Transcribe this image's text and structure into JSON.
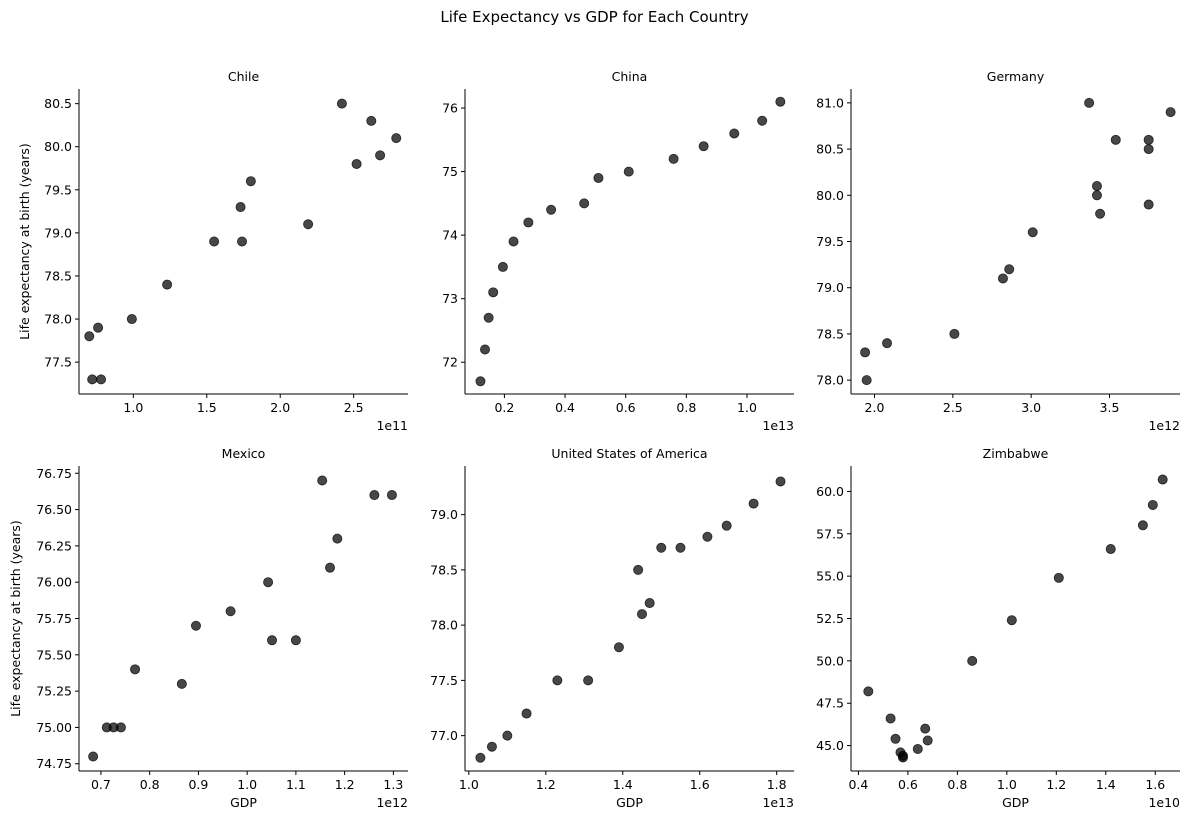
{
  "figure": {
    "title": "Life Expectancy vs GDP for Each Country"
  },
  "colors": {
    "marker": "#000000",
    "axis": "#000000",
    "background": "#ffffff"
  },
  "chart_data": [
    {
      "type": "scatter",
      "title": "Chile",
      "xlabel": "",
      "ylabel": "Life expectancy at birth (years)",
      "x_offset_label": "1e11",
      "xlim": [
        0.63,
        2.87
      ],
      "ylim": [
        77.13,
        80.67
      ],
      "xticks": [
        1.0,
        1.5,
        2.0,
        2.5
      ],
      "xtick_labels": [
        "1.0",
        "1.5",
        "2.0",
        "2.5"
      ],
      "yticks": [
        77.5,
        78.0,
        78.5,
        79.0,
        79.5,
        80.0,
        80.5
      ],
      "ytick_labels": [
        "77.5",
        "78.0",
        "78.5",
        "79.0",
        "79.5",
        "80.0",
        "80.5"
      ],
      "x": [
        0.7,
        0.76,
        0.72,
        0.78,
        0.99,
        1.23,
        1.55,
        1.73,
        1.74,
        1.8,
        2.19,
        2.42,
        2.52,
        2.62,
        2.68,
        2.79
      ],
      "y": [
        77.8,
        77.9,
        77.3,
        77.3,
        78.0,
        78.4,
        78.9,
        79.3,
        78.9,
        79.6,
        79.1,
        80.5,
        79.8,
        80.3,
        79.9,
        80.1
      ]
    },
    {
      "type": "scatter",
      "title": "China",
      "xlabel": "",
      "ylabel": "",
      "x_offset_label": "1e13",
      "xlim": [
        0.07,
        1.155
      ],
      "ylim": [
        71.5,
        76.3
      ],
      "xticks": [
        0.2,
        0.4,
        0.6,
        0.8,
        1.0
      ],
      "xtick_labels": [
        "0.2",
        "0.4",
        "0.6",
        "0.8",
        "1.0"
      ],
      "yticks": [
        72,
        73,
        74,
        75,
        76
      ],
      "ytick_labels": [
        "72",
        "73",
        "74",
        "75",
        "76"
      ],
      "x": [
        0.121,
        0.136,
        0.148,
        0.163,
        0.195,
        0.23,
        0.279,
        0.354,
        0.463,
        0.51,
        0.61,
        0.758,
        0.857,
        0.958,
        1.05,
        1.11
      ],
      "y": [
        71.7,
        72.2,
        72.7,
        73.1,
        73.5,
        73.9,
        74.2,
        74.4,
        74.5,
        74.9,
        75.0,
        75.2,
        75.4,
        75.6,
        75.8,
        76.1
      ]
    },
    {
      "type": "scatter",
      "title": "Germany",
      "xlabel": "",
      "ylabel": "",
      "x_offset_label": "1e12",
      "xlim": [
        1.85,
        3.95
      ],
      "ylim": [
        77.85,
        81.15
      ],
      "xticks": [
        2.0,
        2.5,
        3.0,
        3.5
      ],
      "xtick_labels": [
        "2.0",
        "2.5",
        "3.0",
        "3.5"
      ],
      "yticks": [
        78.0,
        78.5,
        79.0,
        79.5,
        80.0,
        80.5,
        81.0
      ],
      "ytick_labels": [
        "78.0",
        "78.5",
        "79.0",
        "79.5",
        "80.0",
        "80.5",
        "81.0"
      ],
      "x": [
        1.95,
        1.94,
        2.08,
        2.51,
        2.82,
        2.86,
        3.01,
        3.37,
        3.42,
        3.42,
        3.44,
        3.54,
        3.75,
        3.75,
        3.75,
        3.89
      ],
      "y": [
        78.0,
        78.3,
        78.4,
        78.5,
        79.1,
        79.2,
        79.6,
        81.0,
        80.0,
        80.1,
        79.8,
        80.6,
        80.6,
        80.5,
        79.9,
        80.9
      ]
    },
    {
      "type": "scatter",
      "title": "Mexico",
      "xlabel": "GDP",
      "ylabel": "Life expectancy at birth (years)",
      "x_offset_label": "1e12",
      "xlim": [
        0.655,
        1.33
      ],
      "ylim": [
        74.7,
        76.8
      ],
      "xticks": [
        0.7,
        0.8,
        0.9,
        1.0,
        1.1,
        1.2,
        1.3
      ],
      "xtick_labels": [
        "0.7",
        "0.8",
        "0.9",
        "1.0",
        "1.1",
        "1.2",
        "1.3"
      ],
      "yticks": [
        74.75,
        75.0,
        75.25,
        75.5,
        75.75,
        76.0,
        76.25,
        76.5,
        76.75
      ],
      "ytick_labels": [
        "74.75",
        "75.00",
        "75.25",
        "75.50",
        "75.75",
        "76.00",
        "76.25",
        "76.50",
        "76.75"
      ],
      "x": [
        0.684,
        0.712,
        0.726,
        0.741,
        0.77,
        0.866,
        0.895,
        0.966,
        1.043,
        1.051,
        1.1,
        1.154,
        1.17,
        1.185,
        1.261,
        1.297
      ],
      "y": [
        74.8,
        75.0,
        75.0,
        75.0,
        75.4,
        75.3,
        75.7,
        75.8,
        76.0,
        75.6,
        75.6,
        76.7,
        76.1,
        76.3,
        76.6,
        76.6
      ]
    },
    {
      "type": "scatter",
      "title": "United States of America",
      "xlabel": "GDP",
      "ylabel": "",
      "x_offset_label": "1e13",
      "xlim": [
        0.99,
        1.845
      ],
      "ylim": [
        76.68,
        79.44
      ],
      "xticks": [
        1.0,
        1.2,
        1.4,
        1.6,
        1.8
      ],
      "xtick_labels": [
        "1.0",
        "1.2",
        "1.4",
        "1.6",
        "1.8"
      ],
      "yticks": [
        77.0,
        77.5,
        78.0,
        78.5,
        79.0
      ],
      "ytick_labels": [
        "77.0",
        "77.5",
        "78.0",
        "78.5",
        "79.0"
      ],
      "x": [
        1.03,
        1.06,
        1.1,
        1.15,
        1.23,
        1.31,
        1.39,
        1.44,
        1.45,
        1.47,
        1.5,
        1.55,
        1.62,
        1.67,
        1.74,
        1.81
      ],
      "y": [
        76.8,
        76.9,
        77.0,
        77.2,
        77.5,
        77.5,
        77.8,
        78.5,
        78.1,
        78.2,
        78.7,
        78.7,
        78.8,
        78.9,
        79.1,
        79.3
      ]
    },
    {
      "type": "scatter",
      "title": "Zimbabwe",
      "xlabel": "GDP",
      "ylabel": "",
      "x_offset_label": "1e10",
      "xlim": [
        0.37,
        1.7
      ],
      "ylim": [
        43.5,
        61.5
      ],
      "xticks": [
        0.4,
        0.6,
        0.8,
        1.0,
        1.2,
        1.4,
        1.6
      ],
      "xtick_labels": [
        "0.4",
        "0.6",
        "0.8",
        "1.0",
        "1.2",
        "1.4",
        "1.6"
      ],
      "yticks": [
        45.0,
        47.5,
        50.0,
        52.5,
        55.0,
        57.5,
        60.0
      ],
      "ytick_labels": [
        "45.0",
        "47.5",
        "50.0",
        "52.5",
        "55.0",
        "57.5",
        "60.0"
      ],
      "x": [
        0.44,
        0.53,
        0.55,
        0.57,
        0.58,
        0.58,
        0.64,
        0.67,
        0.68,
        0.86,
        1.02,
        1.21,
        1.42,
        1.55,
        1.59,
        1.63
      ],
      "y": [
        48.2,
        46.6,
        45.4,
        44.6,
        44.4,
        44.3,
        44.8,
        46.0,
        45.3,
        50.0,
        52.4,
        54.9,
        56.6,
        58.0,
        59.2,
        60.7
      ]
    }
  ]
}
